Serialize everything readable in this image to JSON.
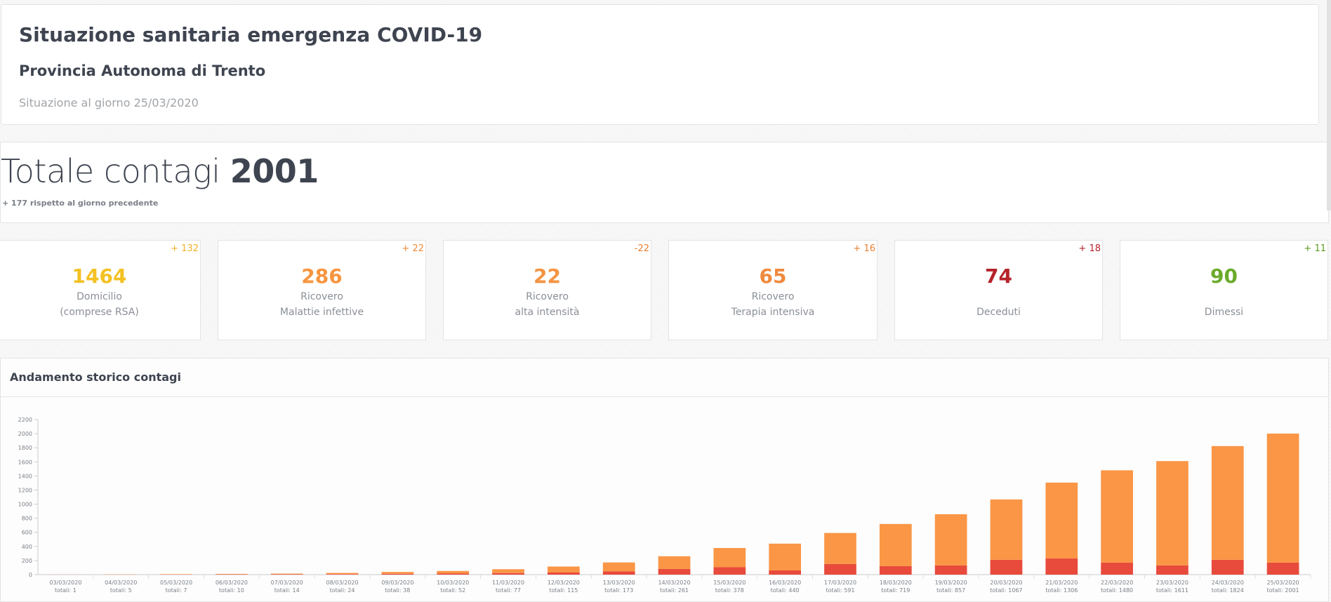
{
  "header": {
    "title": "Situazione sanitaria emergenza COVID-19",
    "subtitle": "Provincia Autonoma di Trento",
    "date_text": "Situazione al giorno 25/03/2020"
  },
  "total": {
    "label": "Totale contagi",
    "value": "2001",
    "delta_text": "+ 177 rispetto al giorno precedente"
  },
  "stats": [
    {
      "value": "1464",
      "label1": "Domicilio",
      "label2": "(comprese RSA)",
      "delta": "+ 132",
      "color": "#f3c123",
      "delta_color": "#f3b128"
    },
    {
      "value": "286",
      "label1": "Ricovero",
      "label2": "Malattie infettive",
      "delta": "+ 22",
      "color": "#f7953f",
      "delta_color": "#f08a36"
    },
    {
      "value": "22",
      "label1": "Ricovero",
      "label2": "alta intensità",
      "delta": "-22",
      "color": "#f39443",
      "delta_color": "#e67e2e"
    },
    {
      "value": "65",
      "label1": "Ricovero",
      "label2": "Terapia intensiva",
      "delta": "+ 16",
      "color": "#ef8a3e",
      "delta_color": "#e67e2e"
    },
    {
      "value": "74",
      "label1": "",
      "label2": "Deceduti",
      "delta": "+ 18",
      "color": "#b5232a",
      "delta_color": "#b5232a"
    },
    {
      "value": "90",
      "label1": "",
      "label2": "Dimessi",
      "delta": "+ 11",
      "color": "#6aaa2a",
      "delta_color": "#5a9c21"
    }
  ],
  "chart_title": "Andamento storico contagi",
  "chart_data": {
    "type": "bar",
    "stacked": true,
    "categories": [
      "03/03/2020",
      "04/03/2020",
      "05/03/2020",
      "06/03/2020",
      "07/03/2020",
      "08/03/2020",
      "09/03/2020",
      "10/03/2020",
      "11/03/2020",
      "12/03/2020",
      "13/03/2020",
      "14/03/2020",
      "15/03/2020",
      "16/03/2020",
      "17/03/2020",
      "18/03/2020",
      "19/03/2020",
      "20/03/2020",
      "21/03/2020",
      "22/03/2020",
      "23/03/2020",
      "24/03/2020",
      "25/03/2020"
    ],
    "sublabels": [
      "totali: 1",
      "totali: 5",
      "totali: 7",
      "totali: 10",
      "totali: 14",
      "totali: 24",
      "totali: 38",
      "totali: 52",
      "totali: 77",
      "totali: 115",
      "totali: 173",
      "totali: 261",
      "totali: 378",
      "totali: 440",
      "totali: 591",
      "totali: 719",
      "totali: 857",
      "totali: 1067",
      "totali: 1306",
      "totali: 1480",
      "totali: 1611",
      "totali: 1824",
      "totali: 2001"
    ],
    "totals": [
      1,
      5,
      7,
      10,
      14,
      24,
      38,
      52,
      77,
      115,
      173,
      261,
      378,
      440,
      591,
      719,
      857,
      1067,
      1306,
      1480,
      1611,
      1824,
      2001
    ],
    "series": [
      {
        "values": [
          1,
          2,
          3,
          4,
          5,
          8,
          12,
          15,
          22,
          30,
          45,
          80,
          105,
          60,
          150,
          120,
          130,
          210,
          230,
          170,
          130,
          210,
          170
        ],
        "color": "#e84a3c"
      },
      {
        "values": [
          0,
          3,
          4,
          6,
          9,
          16,
          26,
          37,
          55,
          85,
          128,
          181,
          273,
          380,
          441,
          599,
          727,
          857,
          1076,
          1310,
          1481,
          1614,
          1831
        ],
        "color": "#fa9646"
      }
    ],
    "ylim": [
      0,
      2200
    ],
    "yticks": [
      0,
      200,
      400,
      600,
      800,
      1000,
      1200,
      1400,
      1600,
      1800,
      2000,
      2200
    ],
    "grid": false
  }
}
